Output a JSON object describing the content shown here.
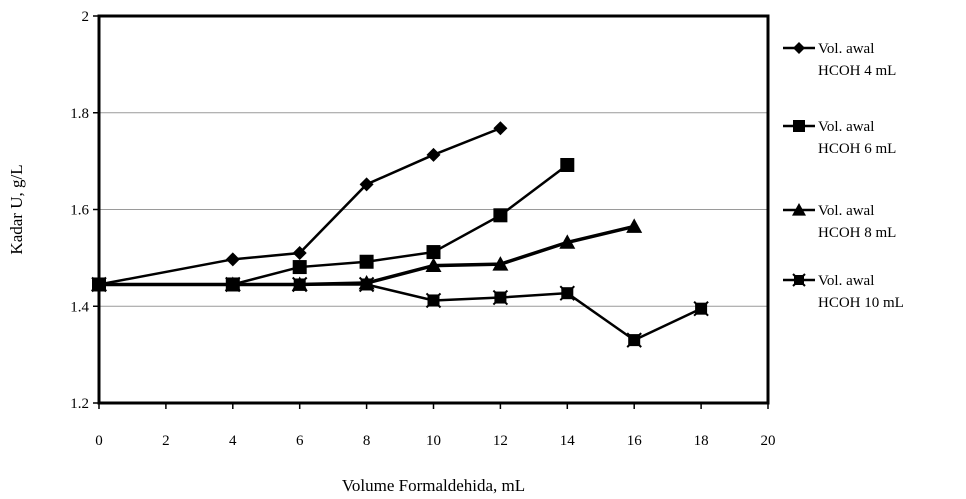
{
  "chart_data": {
    "type": "line",
    "xlabel": "Volume Formaldehida, mL",
    "ylabel": "Kadar U, g/L",
    "xlim": [
      0,
      20
    ],
    "ylim": [
      1.2,
      2
    ],
    "x_ticks": [
      "0",
      "2",
      "4",
      "6",
      "8",
      "10",
      "12",
      "14",
      "16",
      "18",
      "20"
    ],
    "y_ticks": [
      "1.2",
      "1.4",
      "1.6",
      "1.8",
      "2"
    ],
    "grid": "horizontal",
    "legend_position": "right",
    "series": [
      {
        "name_line1": "Vol. awal",
        "name_line2": "HCOH 4 mL",
        "marker": "diamond",
        "points": [
          [
            0,
            1.445
          ],
          [
            4,
            1.497
          ],
          [
            6,
            1.51
          ],
          [
            8,
            1.652
          ],
          [
            10,
            1.713
          ],
          [
            12,
            1.768
          ]
        ]
      },
      {
        "name_line1": "Vol. awal",
        "name_line2": "HCOH 6 mL",
        "marker": "square",
        "points": [
          [
            0,
            1.445
          ],
          [
            4,
            1.445
          ],
          [
            6,
            1.481
          ],
          [
            8,
            1.492
          ],
          [
            10,
            1.512
          ],
          [
            12,
            1.588
          ],
          [
            14,
            1.692
          ]
        ]
      },
      {
        "name_line1": "Vol. awal",
        "name_line2": "HCOH 8 mL",
        "marker": "triangle",
        "points": [
          [
            0,
            1.445
          ],
          [
            4,
            1.445
          ],
          [
            6,
            1.445
          ],
          [
            8,
            1.448
          ],
          [
            10,
            1.484
          ],
          [
            12,
            1.487
          ],
          [
            14,
            1.532
          ],
          [
            16,
            1.565
          ]
        ]
      },
      {
        "name_line1": "Vol. awal",
        "name_line2": "HCOH 10 mL",
        "marker": "star",
        "points": [
          [
            0,
            1.445
          ],
          [
            4,
            1.445
          ],
          [
            6,
            1.445
          ],
          [
            8,
            1.445
          ],
          [
            10,
            1.412
          ],
          [
            12,
            1.418
          ],
          [
            14,
            1.427
          ],
          [
            16,
            1.33
          ],
          [
            18,
            1.395
          ]
        ]
      }
    ]
  }
}
